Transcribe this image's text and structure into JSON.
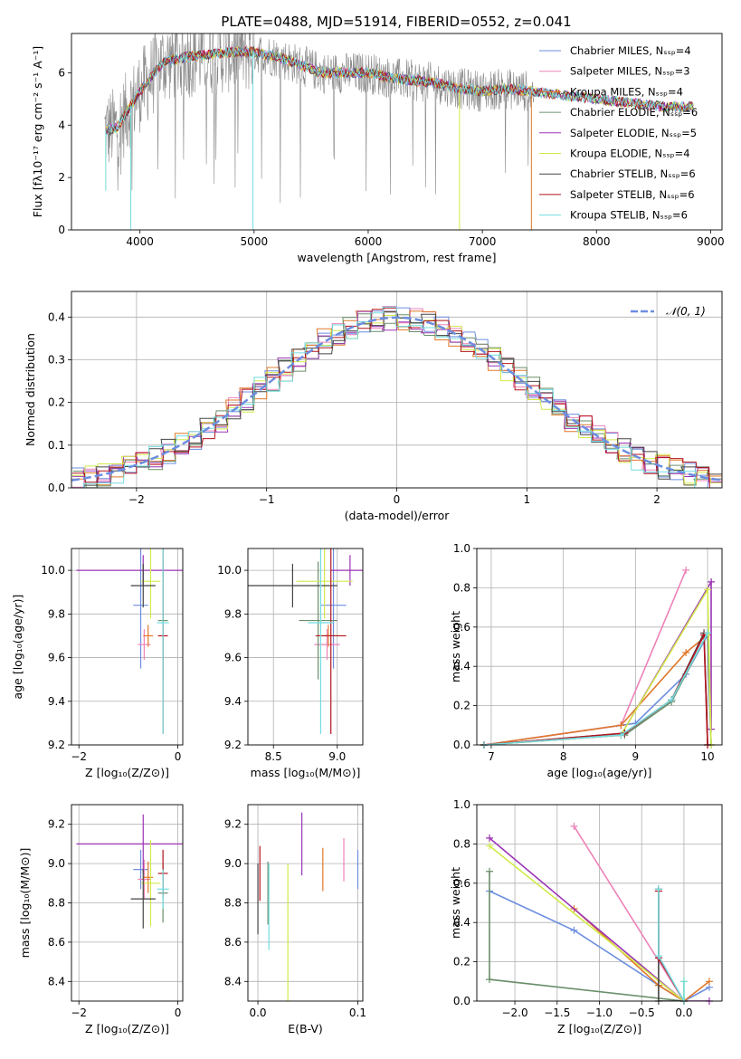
{
  "title": "PLATE=0488, MJD=51914, FIBERID=0552, z=0.041",
  "colors": [
    "#6c8ee0",
    "#ee82b8",
    "#e0782a",
    "#6a8f6a",
    "#9b34b4",
    "#d2ea4a",
    "#454545",
    "#b4141e",
    "#72dce0"
  ],
  "chart_data": [
    {
      "type": "line",
      "title": "PLATE=0488, MJD=51914, FIBERID=0552, z=0.041",
      "xlabel": "wavelength [Angstrom, rest frame]",
      "ylabel": "Flux [fλ10⁻¹⁷ erg cm⁻² s⁻¹ A⁻¹]",
      "xlim": [
        3400,
        9100
      ],
      "ylim": [
        0,
        7.5
      ],
      "xticks": [
        4000,
        5000,
        6000,
        7000,
        8000,
        9000
      ],
      "yticks": [
        0,
        2,
        4,
        6
      ],
      "legend": "top-right",
      "grid": false,
      "series": [
        {
          "name": "Chabrier MILES, N_SSP=4"
        },
        {
          "name": "Salpeter MILES, N_SSP=3"
        },
        {
          "name": "Kroupa MILES, N_SSP=4"
        },
        {
          "name": "Chabrier ELODIE, N_SSP=6"
        },
        {
          "name": "Salpeter ELODIE, N_SSP=5"
        },
        {
          "name": "Kroupa ELODIE, N_SSP=4"
        },
        {
          "name": "Chabrier STELIB, N_SSP=6"
        },
        {
          "name": "Salpeter STELIB, N_SSP=6"
        },
        {
          "name": "Kroupa STELIB, N_SSP=6"
        }
      ],
      "continuum": {
        "x": [
          3700,
          3800,
          4000,
          4200,
          4400,
          4600,
          4800,
          5000,
          5200,
          5400,
          5600,
          5800,
          6000,
          6200,
          6400,
          6600,
          6800,
          7000,
          7200,
          7400,
          7600,
          7800,
          8000,
          8200,
          8400,
          8600,
          8800
        ],
        "y": [
          3.8,
          3.9,
          5.3,
          6.4,
          6.6,
          6.7,
          6.8,
          6.8,
          6.6,
          6.3,
          6.0,
          6.0,
          6.0,
          5.8,
          5.7,
          5.6,
          5.4,
          5.3,
          5.4,
          5.3,
          5.2,
          5.1,
          5.0,
          4.9,
          4.8,
          4.7,
          4.7
        ]
      }
    },
    {
      "type": "line",
      "xlabel": "(data-model)/error",
      "ylabel": "Normed distribution",
      "xlim": [
        -2.5,
        2.5
      ],
      "ylim": [
        0,
        0.46
      ],
      "xticks": [
        -2,
        -1,
        0,
        1,
        2
      ],
      "yticks": [
        0.0,
        0.1,
        0.2,
        0.3,
        0.4
      ],
      "grid": true,
      "legend": "top-right",
      "reference_label": "𝒩(0, 1)",
      "reference": {
        "mu": 0,
        "sigma": 1
      }
    },
    {
      "type": "scatter",
      "xlabel": "Z [log₁₀(Z/Z⊙)]",
      "ylabel": "age  [log₁₀(age/yr)]",
      "xlim": [
        -2.15,
        0.1
      ],
      "ylim": [
        9.2,
        10.1
      ],
      "xticks": [
        -2,
        0
      ],
      "yticks": [
        9.2,
        9.4,
        9.6,
        9.8,
        10.0
      ],
      "grid": true,
      "points": [
        {
          "x": -0.75,
          "y": 9.84,
          "xerr": 0.15,
          "yerr": 0.29,
          "c": 0
        },
        {
          "x": -0.68,
          "y": 9.66,
          "xerr": 0.13,
          "yerr": 0.07,
          "c": 1
        },
        {
          "x": -0.6,
          "y": 9.7,
          "xerr": 0.1,
          "yerr": 0.05,
          "c": 2
        },
        {
          "x": -0.3,
          "y": 9.77,
          "xerr": 0.1,
          "yerr": 0.27,
          "c": 3
        },
        {
          "x": -0.7,
          "y": 10.0,
          "xerr": 1.35,
          "yerr": 0.07,
          "c": 4
        },
        {
          "x": -0.55,
          "y": 9.95,
          "xerr": 0.2,
          "yerr": 0.17,
          "c": 5
        },
        {
          "x": -0.7,
          "y": 9.93,
          "xerr": 0.25,
          "yerr": 0.1,
          "c": 6
        },
        {
          "x": -0.3,
          "y": 9.7,
          "xerr": 0.1,
          "yerr": 0.45,
          "c": 7
        },
        {
          "x": -0.3,
          "y": 9.76,
          "xerr": 0.12,
          "yerr": 0.51,
          "c": 8
        }
      ]
    },
    {
      "type": "scatter",
      "xlabel": "mass [log₁₀(M/M⊙)]",
      "xlim": [
        8.3,
        9.2
      ],
      "ylim": [
        9.2,
        10.1
      ],
      "xticks": [
        8.5,
        9.0
      ],
      "yticks": [
        9.2,
        9.4,
        9.6,
        9.8,
        10.0
      ],
      "grid": true,
      "points": [
        {
          "x": 8.97,
          "y": 9.84,
          "xerr": 0.1,
          "yerr": 0.29,
          "c": 0
        },
        {
          "x": 8.92,
          "y": 9.66,
          "xerr": 0.1,
          "yerr": 0.07,
          "c": 1
        },
        {
          "x": 8.93,
          "y": 9.7,
          "xerr": 0.08,
          "yerr": 0.05,
          "c": 2
        },
        {
          "x": 8.85,
          "y": 9.77,
          "xerr": 0.15,
          "yerr": 0.27,
          "c": 3
        },
        {
          "x": 9.1,
          "y": 10.0,
          "xerr": 0.15,
          "yerr": 0.07,
          "c": 4
        },
        {
          "x": 8.9,
          "y": 9.95,
          "xerr": 0.22,
          "yerr": 0.17,
          "c": 5
        },
        {
          "x": 8.65,
          "y": 9.93,
          "xerr": 0.35,
          "yerr": 0.1,
          "c": 6
        },
        {
          "x": 8.95,
          "y": 9.7,
          "xerr": 0.12,
          "yerr": 0.45,
          "c": 7
        },
        {
          "x": 8.87,
          "y": 9.76,
          "xerr": 0.1,
          "yerr": 0.51,
          "c": 8
        }
      ]
    },
    {
      "type": "line",
      "xlabel": "age  [log₁₀(age/yr)]",
      "ylabel": "mass weight",
      "xlim": [
        6.8,
        10.2
      ],
      "ylim": [
        0,
        1.0
      ],
      "xticks": [
        7,
        8,
        9,
        10
      ],
      "yticks": [
        0.0,
        0.2,
        0.4,
        0.6,
        0.8,
        1.0
      ],
      "grid": true,
      "series": [
        {
          "x": [
            6.9,
            8.8,
            9.0,
            9.7,
            10.0,
            10.05
          ],
          "y": [
            0.0,
            0.1,
            0.11,
            0.36,
            0.56,
            0.0
          ],
          "c": 0
        },
        {
          "x": [
            6.9,
            8.8,
            9.7
          ],
          "y": [
            0.0,
            0.1,
            0.89
          ],
          "c": 1
        },
        {
          "x": [
            6.9,
            8.8,
            9.7,
            10.0
          ],
          "y": [
            0.0,
            0.1,
            0.47,
            0.56
          ],
          "c": 2
        },
        {
          "x": [
            6.9,
            8.85,
            9.5,
            10.0,
            10.05
          ],
          "y": [
            0.0,
            0.05,
            0.22,
            0.57,
            0.0
          ],
          "c": 3
        },
        {
          "x": [
            6.9,
            8.8,
            10.05,
            10.05
          ],
          "y": [
            0.0,
            0.05,
            0.83,
            0.08
          ],
          "c": 4
        },
        {
          "x": [
            6.9,
            8.8,
            10.0,
            10.05
          ],
          "y": [
            0.0,
            0.05,
            0.79,
            0.0
          ],
          "c": 5
        },
        {
          "x": [
            6.9,
            8.85,
            9.5,
            9.95,
            10.0
          ],
          "y": [
            0.0,
            0.06,
            0.23,
            0.57,
            0.0
          ],
          "c": 6
        },
        {
          "x": [
            6.9,
            8.85,
            9.5,
            9.95,
            10.0
          ],
          "y": [
            0.0,
            0.06,
            0.23,
            0.56,
            0.0
          ],
          "c": 7
        },
        {
          "x": [
            6.9,
            8.8,
            9.5,
            10.0
          ],
          "y": [
            0.0,
            0.05,
            0.23,
            0.57
          ],
          "c": 8
        }
      ]
    },
    {
      "type": "scatter",
      "xlabel": "Z [log₁₀(Z/Z⊙)]",
      "ylabel": "mass [log₁₀(M/M⊙)]",
      "xlim": [
        -2.15,
        0.1
      ],
      "ylim": [
        8.3,
        9.3
      ],
      "xticks": [
        -2,
        0
      ],
      "yticks": [
        8.4,
        8.6,
        8.8,
        9.0,
        9.2
      ],
      "grid": true,
      "points": [
        {
          "x": -0.75,
          "y": 8.97,
          "xerr": 0.15,
          "yerr": 0.1,
          "c": 0
        },
        {
          "x": -0.68,
          "y": 8.92,
          "xerr": 0.13,
          "yerr": 0.1,
          "c": 1
        },
        {
          "x": -0.6,
          "y": 8.93,
          "xerr": 0.1,
          "yerr": 0.08,
          "c": 2
        },
        {
          "x": -0.3,
          "y": 8.85,
          "xerr": 0.1,
          "yerr": 0.15,
          "c": 3
        },
        {
          "x": -0.7,
          "y": 9.1,
          "xerr": 1.35,
          "yerr": 0.15,
          "c": 4
        },
        {
          "x": -0.55,
          "y": 8.9,
          "xerr": 0.2,
          "yerr": 0.22,
          "c": 5
        },
        {
          "x": -0.7,
          "y": 8.82,
          "xerr": 0.25,
          "yerr": 0.15,
          "c": 6
        },
        {
          "x": -0.3,
          "y": 8.95,
          "xerr": 0.1,
          "yerr": 0.12,
          "c": 7
        },
        {
          "x": -0.3,
          "y": 8.87,
          "xerr": 0.12,
          "yerr": 0.1,
          "c": 8
        }
      ]
    },
    {
      "type": "scatter",
      "xlabel": "E(B-V)",
      "xlim": [
        -0.01,
        0.105
      ],
      "ylim": [
        8.3,
        9.3
      ],
      "xticks": [
        0.0,
        0.1
      ],
      "yticks": [
        8.4,
        8.6,
        8.8,
        9.0,
        9.2
      ],
      "grid": true,
      "points": [
        {
          "x": 0.1,
          "y": 8.97,
          "yerr": 0.1,
          "c": 0
        },
        {
          "x": 0.086,
          "y": 9.02,
          "yerr": 0.11,
          "c": 1
        },
        {
          "x": 0.065,
          "y": 8.97,
          "yerr": 0.11,
          "c": 2
        },
        {
          "x": 0.01,
          "y": 8.85,
          "yerr": 0.16,
          "c": 3
        },
        {
          "x": 0.044,
          "y": 9.1,
          "yerr": 0.16,
          "c": 4
        },
        {
          "x": 0.03,
          "y": 8.65,
          "yerr": 0.35,
          "c": 5
        },
        {
          "x": 0.0,
          "y": 8.82,
          "yerr": 0.18,
          "c": 6
        },
        {
          "x": 0.002,
          "y": 8.95,
          "yerr": 0.14,
          "c": 7
        },
        {
          "x": 0.011,
          "y": 8.78,
          "yerr": 0.22,
          "c": 8
        }
      ]
    },
    {
      "type": "line",
      "xlabel": "Z [log₁₀(Z/Z⊙)]",
      "ylabel": "mass weight",
      "xlim": [
        -2.45,
        0.45
      ],
      "ylim": [
        0,
        1.0
      ],
      "xticks": [
        -2.0,
        -1.5,
        -1.0,
        -0.5,
        0.0
      ],
      "yticks": [
        0.0,
        0.2,
        0.4,
        0.6,
        0.8,
        1.0
      ],
      "grid": true,
      "series": [
        {
          "x": [
            -2.3,
            -1.3,
            -0.3,
            0.0,
            0.3
          ],
          "y": [
            0.56,
            0.36,
            0.08,
            0.0,
            0.07
          ],
          "c": 0
        },
        {
          "x": [
            -1.3,
            0.0
          ],
          "y": [
            0.89,
            0.0
          ],
          "c": 1
        },
        {
          "x": [
            -1.3,
            -0.3,
            0.0,
            0.3
          ],
          "y": [
            0.47,
            0.08,
            0.0,
            0.1
          ],
          "c": 2
        },
        {
          "x": [
            -2.3,
            -2.3,
            0.0
          ],
          "y": [
            0.66,
            0.11,
            0.0
          ],
          "c": 3
        },
        {
          "x": [
            -2.3,
            0.0,
            0.3
          ],
          "y": [
            0.83,
            0.0,
            0.0
          ],
          "c": 4
        },
        {
          "x": [
            -2.3,
            0.0,
            0.0
          ],
          "y": [
            0.79,
            0.0,
            0.1
          ],
          "c": 5
        },
        {
          "x": [
            -0.3,
            -0.3,
            0.0
          ],
          "y": [
            0.57,
            0.0,
            0.0
          ],
          "c": 6
        },
        {
          "x": [
            -0.3,
            -0.3,
            0.0
          ],
          "y": [
            0.56,
            0.22,
            0.0
          ],
          "c": 7
        },
        {
          "x": [
            -0.3,
            -0.3,
            0.0,
            0.0
          ],
          "y": [
            0.57,
            0.23,
            0.0,
            0.1
          ],
          "c": 8
        }
      ]
    }
  ]
}
